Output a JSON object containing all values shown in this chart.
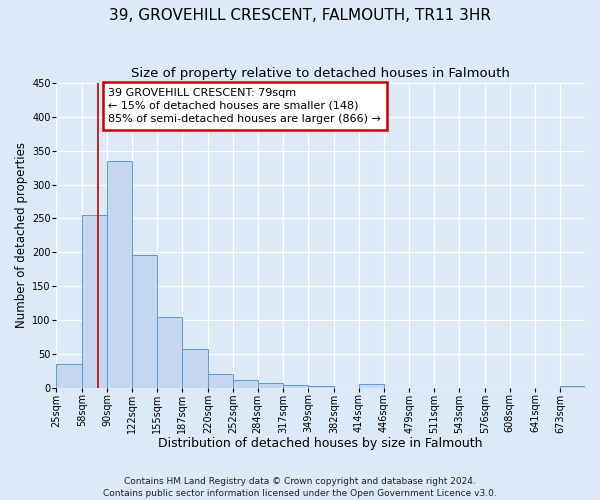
{
  "title": "39, GROVEHILL CRESCENT, FALMOUTH, TR11 3HR",
  "subtitle": "Size of property relative to detached houses in Falmouth",
  "xlabel": "Distribution of detached houses by size in Falmouth",
  "ylabel": "Number of detached properties",
  "bin_labels": [
    "25sqm",
    "58sqm",
    "90sqm",
    "122sqm",
    "155sqm",
    "187sqm",
    "220sqm",
    "252sqm",
    "284sqm",
    "317sqm",
    "349sqm",
    "382sqm",
    "414sqm",
    "446sqm",
    "479sqm",
    "511sqm",
    "543sqm",
    "576sqm",
    "608sqm",
    "641sqm",
    "673sqm"
  ],
  "bar_heights": [
    35,
    255,
    335,
    196,
    104,
    57,
    20,
    11,
    7,
    4,
    3,
    0,
    5,
    0,
    0,
    0,
    0,
    0,
    0,
    0,
    3
  ],
  "bar_color": "#c5d8f0",
  "bar_edge_color": "#5b9bd5",
  "vline_x": 79,
  "bin_edges": [
    25,
    58,
    90,
    122,
    155,
    187,
    220,
    252,
    284,
    317,
    349,
    382,
    414,
    446,
    479,
    511,
    543,
    576,
    608,
    641,
    673,
    705
  ],
  "ylim": [
    0,
    450
  ],
  "yticks": [
    0,
    50,
    100,
    150,
    200,
    250,
    300,
    350,
    400,
    450
  ],
  "annotation_title": "39 GROVEHILL CRESCENT: 79sqm",
  "annotation_line1": "← 15% of detached houses are smaller (148)",
  "annotation_line2": "85% of semi-detached houses are larger (866) →",
  "annotation_box_color": "#ffffff",
  "annotation_box_edge_color": "#cc0000",
  "vline_color": "#cc0000",
  "footer1": "Contains HM Land Registry data © Crown copyright and database right 2024.",
  "footer2": "Contains public sector information licensed under the Open Government Licence v3.0.",
  "background_color": "#dce9f7",
  "plot_background_color": "#dce9f7",
  "title_fontsize": 11,
  "subtitle_fontsize": 9.5,
  "xlabel_fontsize": 9,
  "ylabel_fontsize": 8.5,
  "tick_fontsize": 7,
  "annotation_fontsize": 8,
  "footer_fontsize": 6.5
}
